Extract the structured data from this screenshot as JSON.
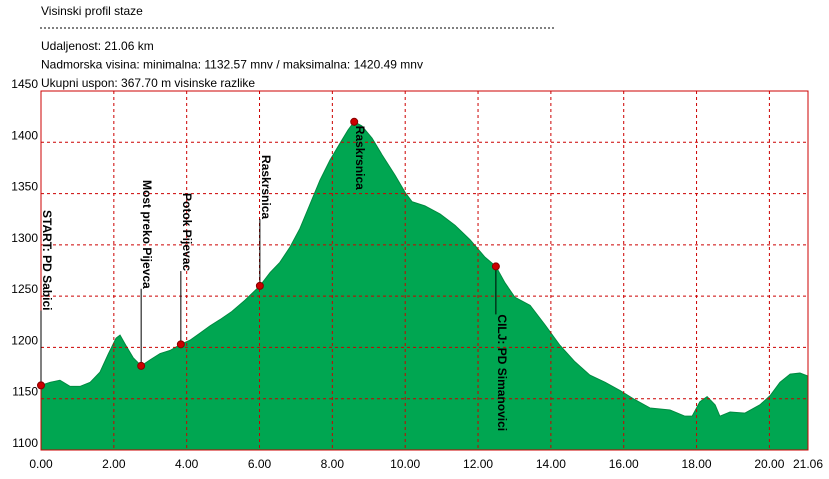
{
  "chart_data": {
    "type": "area",
    "title": "Visinski profil staze",
    "stats": [
      "Udaljenost: 21.06 km",
      "Nadmorska visina:  minimalna: 1132.57 mnv   /  maksimalna: 1420.49 mnv",
      "Ukupni uspon: 367.70 m visinske razlike"
    ],
    "x": [
      0,
      0.25,
      0.52,
      0.8,
      1.07,
      1.35,
      1.62,
      1.84,
      2.06,
      2.17,
      2.33,
      2.53,
      2.75,
      3.0,
      3.27,
      3.54,
      3.84,
      4.09,
      4.37,
      4.64,
      4.91,
      5.24,
      5.6,
      6.01,
      6.29,
      6.56,
      6.84,
      7.11,
      7.38,
      7.66,
      7.94,
      8.21,
      8.43,
      8.6,
      8.81,
      9.09,
      9.36,
      9.72,
      10.0,
      10.19,
      10.54,
      10.96,
      11.37,
      11.78,
      12.19,
      12.49,
      12.74,
      13.01,
      13.43,
      13.84,
      14.25,
      14.66,
      15.07,
      15.49,
      15.9,
      16.31,
      16.72,
      17.27,
      17.68,
      17.88,
      18.09,
      18.29,
      18.51,
      18.64,
      18.92,
      19.33,
      19.74,
      20.02,
      20.29,
      20.57,
      20.84,
      21.06
    ],
    "values": [
      1163,
      1166,
      1168,
      1162,
      1162,
      1166,
      1176,
      1193,
      1209,
      1212,
      1202,
      1190,
      1182,
      1188,
      1194,
      1197,
      1203,
      1207,
      1214,
      1221,
      1227,
      1235,
      1246,
      1260,
      1273,
      1283,
      1298,
      1316,
      1339,
      1363,
      1383,
      1399,
      1412,
      1420,
      1416,
      1404,
      1388,
      1368,
      1351,
      1342,
      1338,
      1330,
      1319,
      1305,
      1288,
      1279,
      1263,
      1249,
      1241,
      1222,
      1202,
      1186,
      1173,
      1166,
      1158,
      1149,
      1141,
      1139,
      1133,
      1133,
      1147,
      1152,
      1144,
      1133,
      1137,
      1136,
      1144,
      1153,
      1166,
      1174,
      1175,
      1172
    ],
    "color": "#00a651",
    "annotations": [
      {
        "label": "START: PD Sabici",
        "x": 0,
        "y": 1163
      },
      {
        "label": "Most preko Pijevca",
        "x": 2.75,
        "y": 1182
      },
      {
        "label": "Potok  Pijevac",
        "x": 3.84,
        "y": 1203
      },
      {
        "label": "Raskrsnica",
        "x": 6.01,
        "y": 1260
      },
      {
        "label": "Raskrsnica",
        "x": 8.6,
        "y": 1420
      },
      {
        "label": "CILJ: PD Simanovici",
        "x": 12.49,
        "y": 1279
      }
    ],
    "xlim": [
      0,
      21.06
    ],
    "xticks": [
      {
        "value": 0,
        "label": "0.00"
      },
      {
        "value": 2,
        "label": "2.00"
      },
      {
        "value": 4,
        "label": "4.00"
      },
      {
        "value": 6,
        "label": "6.00"
      },
      {
        "value": 8,
        "label": "8.00"
      },
      {
        "value": 10,
        "label": "10.00"
      },
      {
        "value": 12,
        "label": "12.00"
      },
      {
        "value": 14,
        "label": "14.00"
      },
      {
        "value": 16,
        "label": "16.00"
      },
      {
        "value": 18,
        "label": "18.00"
      },
      {
        "value": 20,
        "label": "20.00"
      },
      {
        "value": 21.06,
        "label": "21.06"
      }
    ],
    "ylim": [
      1100,
      1450
    ],
    "yticks": [
      1100,
      1150,
      1200,
      1250,
      1300,
      1350,
      1400,
      1450
    ],
    "grid": true
  }
}
